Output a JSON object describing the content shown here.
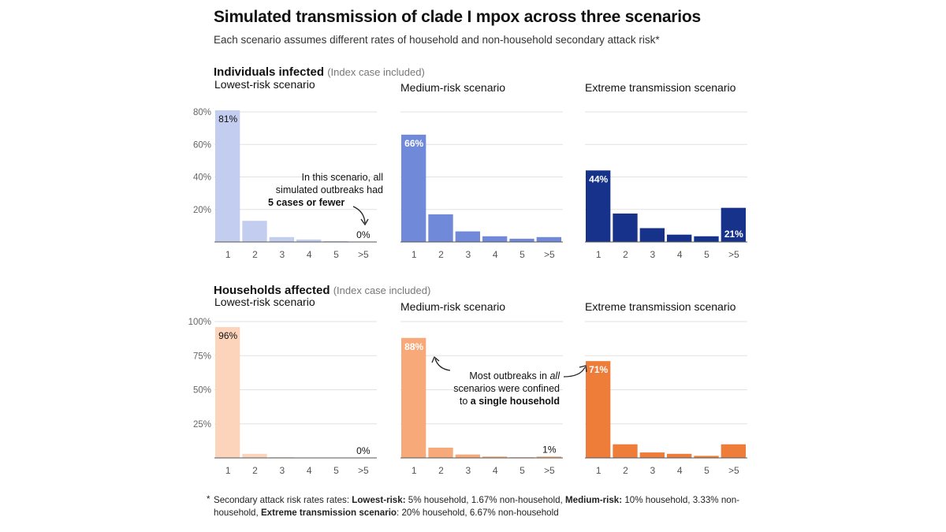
{
  "title": "Simulated transmission of clade I mpox across three scenarios",
  "subtitle": "Each scenario assumes different rates of household and non-household secondary attack risk*",
  "sections": [
    {
      "title": "Individuals infected",
      "note": "(Index case included)"
    },
    {
      "title": "Households affected",
      "note": "(Index case included)"
    }
  ],
  "annotations": {
    "individuals": {
      "line1": "In this scenario, all",
      "line2": "simulated outbreaks had",
      "bold": "5 cases or fewer"
    },
    "households": {
      "line1_pre": "Most outbreaks in ",
      "line1_em": "all",
      "line2": "scenarios were confined",
      "line3_pre": "to ",
      "bold": "a single household"
    }
  },
  "footnote": {
    "star": "*",
    "p1": "Secondary attack risk rates rates: ",
    "b1": "Lowest-risk:",
    "p2": " 5% household, 1.67% non-household, ",
    "b2": "Medium-risk:",
    "p3": "  10% household, 3.33% non-household, ",
    "b3": "Extreme transmission scenario",
    "p4": ": 20% household, 6.67% non-household"
  },
  "chart_data": [
    {
      "type": "bar",
      "section": "Individuals infected",
      "subtitle": "Lowest-risk scenario",
      "categories": [
        "1",
        "2",
        "3",
        "4",
        "5",
        ">5"
      ],
      "values": [
        81,
        13,
        3,
        1.5,
        0.5,
        0
      ],
      "labels": [
        "81%",
        "",
        "",
        "",
        "",
        "0%"
      ],
      "ylim": [
        0,
        80
      ],
      "yticks": [
        "20%",
        "40%",
        "60%",
        "80%"
      ],
      "color": "#c3cdf0"
    },
    {
      "type": "bar",
      "section": "Individuals infected",
      "subtitle": "Medium-risk scenario",
      "categories": [
        "1",
        "2",
        "3",
        "4",
        "5",
        ">5"
      ],
      "values": [
        66,
        17,
        6.5,
        3.5,
        2,
        3
      ],
      "labels": [
        "66%",
        "",
        "",
        "",
        "",
        "3%"
      ],
      "ylim": [
        0,
        80
      ],
      "color": "#7189d9"
    },
    {
      "type": "bar",
      "section": "Individuals infected",
      "subtitle": "Extreme transmission scenario",
      "categories": [
        "1",
        "2",
        "3",
        "4",
        "5",
        ">5"
      ],
      "values": [
        44,
        17.5,
        8.5,
        4.5,
        3.5,
        21
      ],
      "labels": [
        "44%",
        "",
        "",
        "",
        "",
        "21%"
      ],
      "ylim": [
        0,
        80
      ],
      "color": "#17328a"
    },
    {
      "type": "bar",
      "section": "Households affected",
      "subtitle": "Lowest-risk scenario",
      "categories": [
        "1",
        "2",
        "3",
        "4",
        "5",
        ">5"
      ],
      "values": [
        96,
        3,
        0.5,
        0.2,
        0,
        0
      ],
      "labels": [
        "96%",
        "",
        "",
        "",
        "",
        "0%"
      ],
      "ylim": [
        0,
        100
      ],
      "yticks": [
        "25%",
        "50%",
        "75%",
        "100%"
      ],
      "color": "#fcd3bb"
    },
    {
      "type": "bar",
      "section": "Households affected",
      "subtitle": "Medium-risk scenario",
      "categories": [
        "1",
        "2",
        "3",
        "4",
        "5",
        ">5"
      ],
      "values": [
        88,
        7.5,
        2.5,
        1,
        0.5,
        1
      ],
      "labels": [
        "88%",
        "",
        "",
        "",
        "",
        "1%"
      ],
      "ylim": [
        0,
        100
      ],
      "color": "#f7a97a"
    },
    {
      "type": "bar",
      "section": "Households affected",
      "subtitle": "Extreme transmission scenario",
      "categories": [
        "1",
        "2",
        "3",
        "4",
        "5",
        ">5"
      ],
      "values": [
        71,
        10,
        4,
        3,
        1.5,
        10
      ],
      "labels": [
        "71%",
        "",
        "",
        "",
        "",
        "10%"
      ],
      "ylim": [
        0,
        100
      ],
      "color": "#ef7d3a"
    }
  ]
}
